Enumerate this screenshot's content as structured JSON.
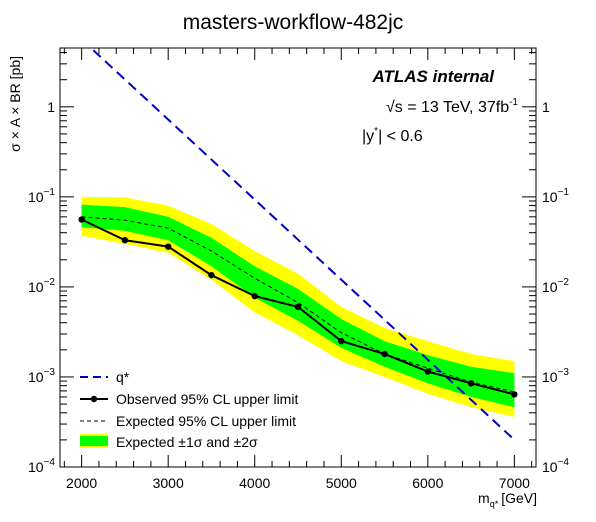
{
  "chart_data": {
    "type": "line",
    "title": "masters-workflow-482jc",
    "xlabel_main": "m",
    "xlabel_sub": "q*",
    "xlabel_unit": "[GeV]",
    "ylabel": "σ × A × BR [pb]",
    "x_scale": "linear",
    "y_scale": "log",
    "xlim": [
      1750,
      7250
    ],
    "ylim": [
      0.0001,
      4.5
    ],
    "x_ticks": [
      "2000",
      "3000",
      "4000",
      "5000",
      "6000",
      "7000"
    ],
    "y_ticks_left": [
      {
        "base": "10",
        "exp": "−4",
        "value": 0.0001
      },
      {
        "base": "10",
        "exp": "−3",
        "value": 0.001
      },
      {
        "base": "10",
        "exp": "−2",
        "value": 0.01
      },
      {
        "base": "10",
        "exp": "−1",
        "value": 0.1
      },
      {
        "base": "1",
        "exp": "",
        "value": 1
      }
    ],
    "y_ticks_right": [
      {
        "base": "10",
        "exp": "−4",
        "value": 0.0001
      },
      {
        "base": "10",
        "exp": "−3",
        "value": 0.001
      },
      {
        "base": "10",
        "exp": "−2",
        "value": 0.01
      },
      {
        "base": "10",
        "exp": "−1",
        "value": 0.1
      },
      {
        "base": "1",
        "exp": "",
        "value": 1
      }
    ],
    "annotations": {
      "experiment": "ATLAS internal",
      "energy_prefix": "√s = 13 TeV, 37fb",
      "energy_sup": "-1",
      "cut_prefix": "|y",
      "cut_sup": "*",
      "cut_suffix": "| < 0.6"
    },
    "legend_position": "bottom-left",
    "legend": [
      {
        "label": "q*",
        "style": "dashed-blue"
      },
      {
        "label": "Observed 95% CL upper limit",
        "style": "solid-black-markers"
      },
      {
        "label": "Expected 95% CL upper limit",
        "style": "dashed-black"
      },
      {
        "label": "Expected ±1σ and ±2σ",
        "style": "green-yellow-band"
      }
    ],
    "colors": {
      "theory": "#0000cc",
      "observed": "#000000",
      "expected": "#000000",
      "band_1sigma": "#00ff00",
      "band_2sigma": "#ffff00"
    },
    "x": [
      2000,
      2500,
      3000,
      3500,
      4000,
      4500,
      5000,
      5500,
      6000,
      6500,
      7000
    ],
    "series": [
      {
        "name": "q*",
        "x": [
          2000,
          7000
        ],
        "y": [
          5.6,
          0.0002
        ]
      },
      {
        "name": "Observed 95% CL upper limit",
        "y": [
          0.056,
          0.033,
          0.028,
          0.0135,
          0.0079,
          0.006,
          0.0025,
          0.0018,
          0.00115,
          0.00085,
          0.00064
        ]
      },
      {
        "name": "Expected 95% CL upper limit",
        "y": [
          0.06,
          0.055,
          0.045,
          0.025,
          0.0125,
          0.0067,
          0.0031,
          0.0018,
          0.00125,
          0.00088,
          0.00068
        ]
      },
      {
        "name": "Expected ±1σ",
        "lower": [
          0.046,
          0.042,
          0.033,
          0.017,
          0.0076,
          0.0042,
          0.0021,
          0.0013,
          0.00085,
          0.0006,
          0.00046
        ],
        "upper": [
          0.082,
          0.077,
          0.06,
          0.035,
          0.017,
          0.0095,
          0.0044,
          0.0025,
          0.00175,
          0.0013,
          0.0011
        ]
      },
      {
        "name": "Expected ±2σ",
        "lower": [
          0.037,
          0.03,
          0.024,
          0.012,
          0.0052,
          0.0029,
          0.0015,
          0.001,
          0.00065,
          0.00046,
          0.00036
        ],
        "upper": [
          0.1,
          0.099,
          0.08,
          0.05,
          0.025,
          0.014,
          0.006,
          0.0035,
          0.0025,
          0.0018,
          0.0015
        ]
      }
    ]
  }
}
